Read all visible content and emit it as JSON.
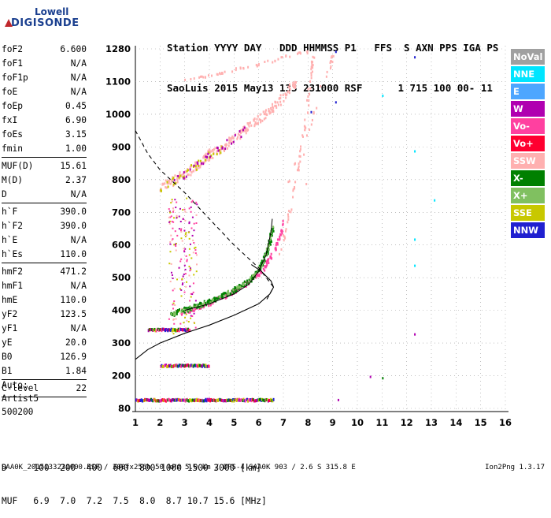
{
  "logo": {
    "line1": "Lowell",
    "line2": "DIGISONDE"
  },
  "header": {
    "line1": "Station YYYY DAY   DDD HHMMSS P1   FFS  S AXN PPS IGA PS",
    "line2": "SaoLuis 2015 May13 133 231000 RSF      1 715 100 00- 11"
  },
  "params_group1": [
    {
      "label": "foF2",
      "value": "6.600"
    },
    {
      "label": "foF1",
      "value": "N/A"
    },
    {
      "label": "foF1p",
      "value": "N/A"
    },
    {
      "label": "foE",
      "value": "N/A"
    },
    {
      "label": "foEp",
      "value": "0.45"
    },
    {
      "label": "fxI",
      "value": "6.90"
    },
    {
      "label": "foEs",
      "value": "3.15"
    },
    {
      "label": "fmin",
      "value": "1.00"
    }
  ],
  "params_group2": [
    {
      "label": "MUF(D)",
      "value": "15.61"
    },
    {
      "label": "M(D)",
      "value": "2.37"
    },
    {
      "label": "D",
      "value": "N/A"
    }
  ],
  "params_group3": [
    {
      "label": "h`F",
      "value": "390.0"
    },
    {
      "label": "h`F2",
      "value": "390.0"
    },
    {
      "label": "h`E",
      "value": "N/A"
    },
    {
      "label": "h`Es",
      "value": "110.0"
    }
  ],
  "params_group4": [
    {
      "label": "hmF2",
      "value": "471.2"
    },
    {
      "label": "hmF1",
      "value": "N/A"
    },
    {
      "label": "hmE",
      "value": "110.0"
    },
    {
      "label": "yF2",
      "value": "123.5"
    },
    {
      "label": "yF1",
      "value": "N/A"
    },
    {
      "label": "yE",
      "value": "20.0"
    },
    {
      "label": "B0",
      "value": "126.9"
    },
    {
      "label": "B1",
      "value": "1.84"
    }
  ],
  "params_group5": [
    {
      "label": "C-level",
      "value": "22"
    }
  ],
  "auto": {
    "line1": "Auto:",
    "line2": "Artist5",
    "line3": "500200"
  },
  "legend": [
    {
      "label": "NoVal",
      "color": "#a0a0a0"
    },
    {
      "label": "NNE",
      "color": "#00e5ff"
    },
    {
      "label": "E",
      "color": "#4da6ff"
    },
    {
      "label": "W",
      "color": "#b000b0"
    },
    {
      "label": "Vo-",
      "color": "#ff40a0"
    },
    {
      "label": "Vo+",
      "color": "#ff0030"
    },
    {
      "label": "SSW",
      "color": "#ffb0b0"
    },
    {
      "label": "X-",
      "color": "#008000"
    },
    {
      "label": "X+",
      "color": "#80c060"
    },
    {
      "label": "SSE",
      "color": "#c8c800"
    },
    {
      "label": "NNW",
      "color": "#2020d0"
    }
  ],
  "dtable": {
    "line1": "D     100  200  400  600  800 1000 1500 3000 [km]",
    "line2": "MUF   6.9  7.0  7.2  7.5  8.0  8.7 10.7 15.6 [MHz]"
  },
  "footer": {
    "left": "SAA0K_2015133231000.RSF / 300fx256h 50 kHz 5.0 km / DPS-4 SAA0K 903 / 2.6 S 315.8 E",
    "right": "Ion2Png 1.3.17"
  },
  "chart_data": {
    "type": "scatter",
    "x_ticks": [
      "1",
      "2",
      "3",
      "4",
      "5",
      "6",
      "7",
      "8",
      "9",
      "10",
      "11",
      "12",
      "13",
      "14",
      "15",
      "16"
    ],
    "y_ticks": [
      "80",
      "200",
      "300",
      "400",
      "500",
      "600",
      "700",
      "800",
      "900",
      "1000",
      "1100",
      "1280"
    ],
    "xlim": [
      1,
      16
    ],
    "ylim": [
      80,
      1280
    ],
    "y_tick_values": [
      80,
      200,
      300,
      400,
      500,
      600,
      700,
      800,
      900,
      1000,
      1100,
      1280
    ],
    "trace_f2_x": [
      {
        "f": 2.4,
        "h": 390
      },
      {
        "f": 2.8,
        "h": 400
      },
      {
        "f": 3.2,
        "h": 410
      },
      {
        "f": 3.6,
        "h": 420
      },
      {
        "f": 4.0,
        "h": 430
      },
      {
        "f": 4.4,
        "h": 445
      },
      {
        "f": 4.8,
        "h": 460
      },
      {
        "f": 5.2,
        "h": 475
      },
      {
        "f": 5.6,
        "h": 495
      },
      {
        "f": 5.9,
        "h": 520
      },
      {
        "f": 6.1,
        "h": 545
      },
      {
        "f": 6.3,
        "h": 580
      },
      {
        "f": 6.45,
        "h": 620
      },
      {
        "f": 6.55,
        "h": 660
      }
    ],
    "trace_f2_o": [
      {
        "f": 2.8,
        "h": 395
      },
      {
        "f": 3.2,
        "h": 405
      },
      {
        "f": 3.6,
        "h": 415
      },
      {
        "f": 4.0,
        "h": 425
      },
      {
        "f": 4.4,
        "h": 440
      },
      {
        "f": 4.8,
        "h": 455
      },
      {
        "f": 5.2,
        "h": 470
      },
      {
        "f": 5.6,
        "h": 490
      },
      {
        "f": 6.0,
        "h": 515
      },
      {
        "f": 6.3,
        "h": 545
      },
      {
        "f": 6.6,
        "h": 585
      },
      {
        "f": 6.85,
        "h": 630
      },
      {
        "f": 7.0,
        "h": 680
      }
    ],
    "profile_solid": [
      {
        "f": 1.0,
        "h": 250
      },
      {
        "f": 1.5,
        "h": 280
      },
      {
        "f": 2.0,
        "h": 300
      },
      {
        "f": 3.0,
        "h": 330
      },
      {
        "f": 4.0,
        "h": 355
      },
      {
        "f": 5.0,
        "h": 385
      },
      {
        "f": 6.0,
        "h": 420
      },
      {
        "f": 6.45,
        "h": 450
      },
      {
        "f": 6.6,
        "h": 471
      },
      {
        "f": 6.5,
        "h": 490
      },
      {
        "f": 6.1,
        "h": 520
      },
      {
        "f": 5.7,
        "h": 540
      }
    ],
    "profile_dashed": [
      {
        "f": 1.0,
        "h": 950
      },
      {
        "f": 1.5,
        "h": 880
      },
      {
        "f": 2.0,
        "h": 830
      },
      {
        "f": 3.0,
        "h": 760
      },
      {
        "f": 4.0,
        "h": 680
      },
      {
        "f": 5.0,
        "h": 600
      },
      {
        "f": 6.0,
        "h": 530
      },
      {
        "f": 6.6,
        "h": 471
      },
      {
        "f": 6.3,
        "h": 430
      }
    ],
    "f2_echo_second_hop": [
      {
        "f": 2.0,
        "h": 780
      },
      {
        "f": 2.5,
        "h": 800
      },
      {
        "f": 3.0,
        "h": 820
      },
      {
        "f": 3.5,
        "h": 850
      },
      {
        "f": 4.0,
        "h": 880
      },
      {
        "f": 4.5,
        "h": 900
      },
      {
        "f": 5.0,
        "h": 930
      },
      {
        "f": 5.5,
        "h": 960
      },
      {
        "f": 6.0,
        "h": 990
      },
      {
        "f": 6.5,
        "h": 1020
      },
      {
        "f": 7.0,
        "h": 1060
      },
      {
        "f": 7.5,
        "h": 1100
      }
    ],
    "ssw_high_trace": [
      {
        "f": 3.0,
        "h": 1110
      },
      {
        "f": 4.0,
        "h": 1140
      },
      {
        "f": 5.0,
        "h": 1170
      },
      {
        "f": 6.0,
        "h": 1200
      },
      {
        "f": 7.0,
        "h": 1240
      },
      {
        "f": 8.0,
        "h": 1270
      }
    ],
    "es_bands": [
      {
        "h": 110,
        "f_start": 1.0,
        "f_end": 6.6
      },
      {
        "h": 230,
        "f_start": 2.0,
        "f_end": 4.0
      },
      {
        "h": 340,
        "f_start": 1.5,
        "f_end": 3.2
      }
    ],
    "scattered_points": [
      {
        "f": 9.1,
        "h": 1270,
        "c": "#2020d0"
      },
      {
        "f": 9.1,
        "h": 1040,
        "c": "#2020d0"
      },
      {
        "f": 8.1,
        "h": 1010,
        "c": "#2020d0"
      },
      {
        "f": 12.3,
        "h": 1240,
        "c": "#2020d0"
      },
      {
        "f": 11.0,
        "h": 1060,
        "c": "#00e5ff"
      },
      {
        "f": 12.3,
        "h": 890,
        "c": "#00e5ff"
      },
      {
        "f": 13.1,
        "h": 740,
        "c": "#00e5ff"
      },
      {
        "f": 12.3,
        "h": 620,
        "c": "#00e5ff"
      },
      {
        "f": 12.3,
        "h": 540,
        "c": "#00e5ff"
      },
      {
        "f": 12.3,
        "h": 330,
        "c": "#b000b0"
      },
      {
        "f": 10.5,
        "h": 200,
        "c": "#b000b0"
      },
      {
        "f": 11.0,
        "h": 195,
        "c": "#008000"
      },
      {
        "f": 9.2,
        "h": 115,
        "c": "#b000b0"
      },
      {
        "f": 7.9,
        "h": 790,
        "c": "#ffb0b0"
      },
      {
        "f": 7.8,
        "h": 880,
        "c": "#ffb0b0"
      }
    ]
  }
}
